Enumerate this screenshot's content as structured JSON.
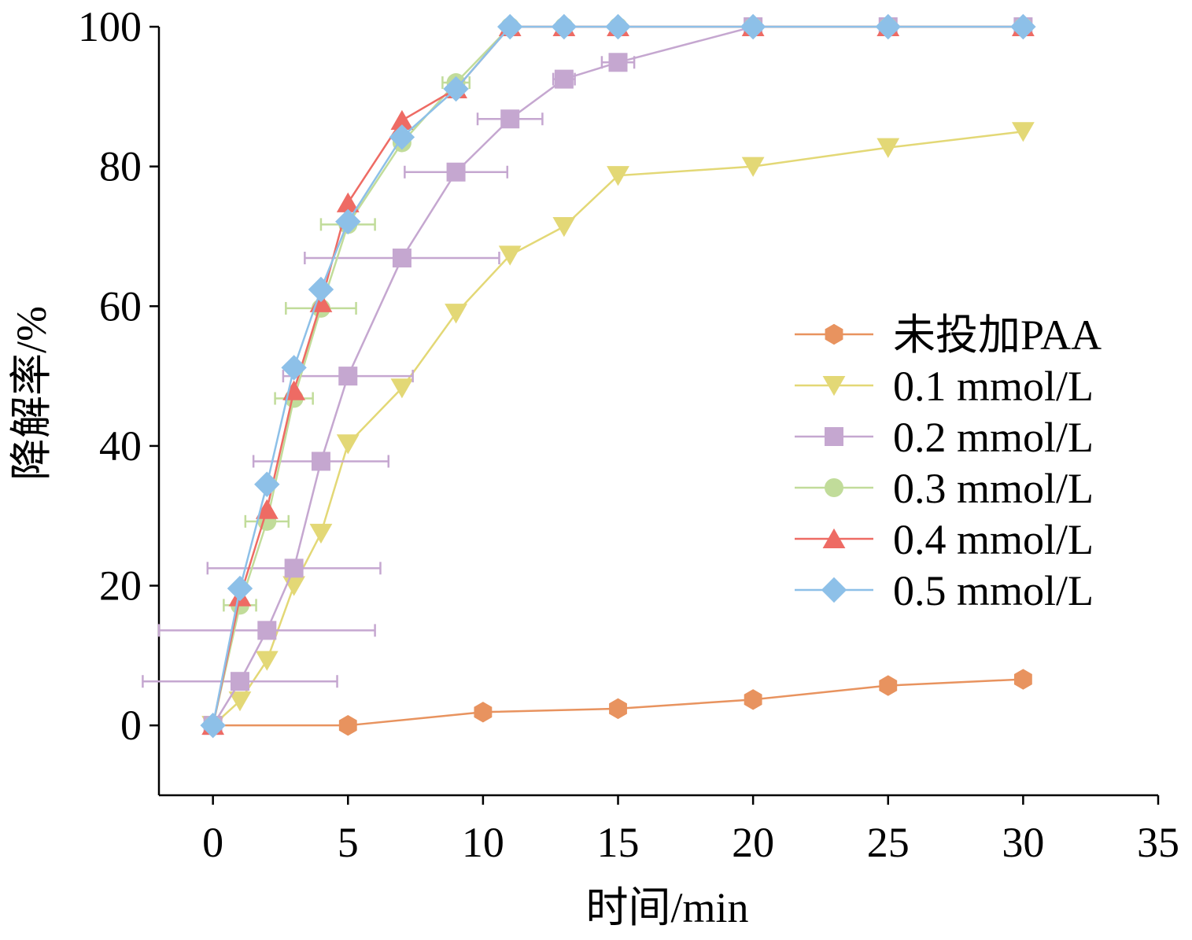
{
  "chart_data": {
    "type": "line",
    "title": "",
    "xlabel": "时间/min",
    "ylabel": "降解率/%",
    "xlim": [
      -2,
      35
    ],
    "ylim": [
      -10,
      100
    ],
    "xticks": [
      0,
      5,
      10,
      15,
      20,
      25,
      30,
      35
    ],
    "yticks": [
      0,
      20,
      40,
      60,
      80,
      100
    ],
    "grid": false,
    "legend_position": "right",
    "series": [
      {
        "name": "未投加PAA",
        "color": "#E8935F",
        "marker": "hexagon",
        "x": [
          0,
          5,
          10,
          15,
          20,
          25,
          30
        ],
        "y": [
          0,
          0,
          1.9,
          2.4,
          3.7,
          5.7,
          6.6
        ],
        "xerr": [
          0,
          0,
          0,
          0,
          0,
          0,
          0
        ]
      },
      {
        "name": "0.1 mmol/L",
        "color": "#E3D876",
        "marker": "triangle-down",
        "x": [
          0,
          1,
          2,
          3,
          4,
          5,
          7,
          9,
          11,
          13,
          15,
          20,
          25,
          30
        ],
        "y": [
          0,
          3.5,
          9.3,
          20,
          27.5,
          40.3,
          48.3,
          59,
          67.3,
          71.4,
          78.7,
          80,
          82.7,
          85
        ],
        "xerr": [
          0,
          0,
          0,
          0,
          0,
          0,
          0,
          0,
          0,
          0,
          0,
          0,
          0,
          0
        ]
      },
      {
        "name": "0.2 mmol/L",
        "color": "#C5A7D0",
        "marker": "square",
        "x": [
          0,
          1,
          2,
          3,
          4,
          5,
          7,
          9,
          11,
          13,
          15,
          20,
          25,
          30
        ],
        "y": [
          0,
          6.3,
          13.6,
          22.5,
          37.8,
          50,
          66.9,
          79.2,
          86.8,
          92.5,
          94.9,
          100,
          100,
          100
        ],
        "xerr": [
          0,
          3.6,
          4.0,
          3.2,
          2.5,
          2.4,
          3.6,
          1.9,
          1.2,
          0.4,
          0.6,
          0,
          0,
          0
        ]
      },
      {
        "name": "0.3 mmol/L",
        "color": "#C1DC9A",
        "marker": "circle",
        "x": [
          0,
          1,
          2,
          3,
          4,
          5,
          7,
          9,
          11,
          13,
          15,
          20,
          25,
          30
        ],
        "y": [
          0,
          17.2,
          29.2,
          46.8,
          59.7,
          71.7,
          83.4,
          92,
          100,
          100,
          100,
          100,
          100,
          100
        ],
        "xerr": [
          0,
          0.6,
          0.8,
          0.7,
          1.3,
          1.0,
          0,
          0.5,
          0,
          0,
          0,
          0,
          0,
          0
        ]
      },
      {
        "name": "0.4 mmol/L",
        "color": "#EE6B64",
        "marker": "triangle-up",
        "x": [
          0,
          1,
          2,
          3,
          4,
          5,
          7,
          9,
          11,
          13,
          15,
          20,
          25,
          30
        ],
        "y": [
          0,
          18.4,
          30.9,
          47.9,
          60.5,
          74.8,
          86.6,
          91.1,
          100,
          100,
          100,
          100,
          100,
          100
        ],
        "xerr": [
          0,
          0,
          0,
          0,
          0,
          0,
          0,
          0,
          0,
          0,
          0,
          0,
          0,
          0
        ]
      },
      {
        "name": "0.5 mmol/L",
        "color": "#8DC0E8",
        "marker": "diamond",
        "x": [
          0,
          1,
          2,
          3,
          4,
          5,
          7,
          9,
          11,
          13,
          15,
          20,
          25,
          30
        ],
        "y": [
          0,
          19.6,
          34.5,
          51.2,
          62.4,
          72.1,
          84.2,
          91.1,
          100,
          100,
          100,
          100,
          100,
          100
        ],
        "xerr": [
          0,
          0,
          0,
          0,
          0,
          0,
          0,
          0,
          0,
          0,
          0,
          0,
          0,
          0
        ]
      }
    ]
  }
}
